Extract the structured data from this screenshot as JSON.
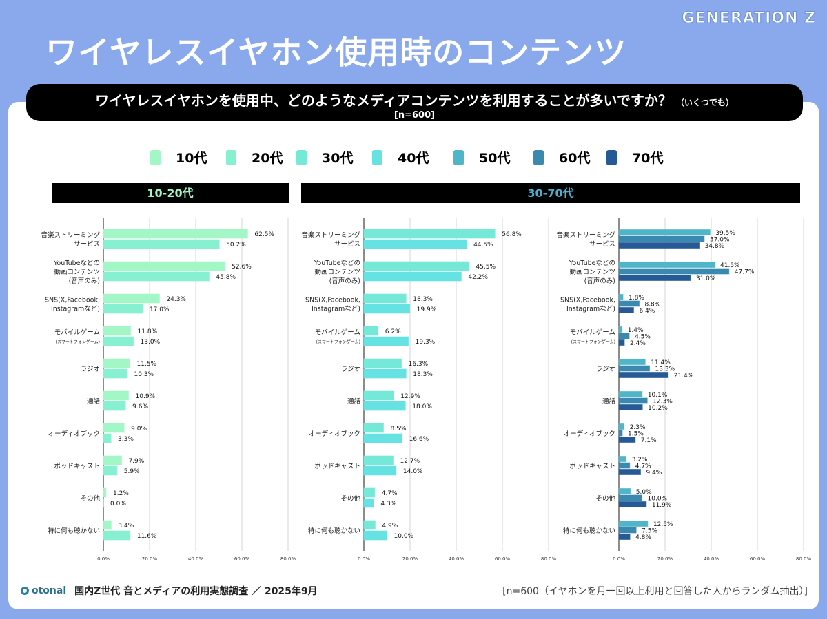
{
  "brand": "GENERATION Z",
  "title": "ワイヤレスイヤホン使用時のコンテンツ",
  "question": "ワイヤレスイヤホンを使用中、どのようなメディアコンテンツを利用することが多いですか？",
  "question_note": "（いくつでも）",
  "sample": "[n=600]",
  "legend": [
    {
      "label": "10代",
      "color": "#a3f7c6"
    },
    {
      "label": "20代",
      "color": "#86f0d0"
    },
    {
      "label": "30代",
      "color": "#76e8d8"
    },
    {
      "label": "40代",
      "color": "#67e2e2"
    },
    {
      "label": "50代",
      "color": "#4fb5c8"
    },
    {
      "label": "60代",
      "color": "#3a89b0"
    },
    {
      "label": "70代",
      "color": "#265a96"
    }
  ],
  "panel_headers": [
    {
      "label": "10-20代",
      "color": "#a0f5c8"
    },
    {
      "label": "30-70代",
      "color": "#4ab0d0"
    }
  ],
  "footer": {
    "logo": "otonal",
    "source": "国内Z世代 音とメディアの利用実態調査 ／ 2025年9月",
    "note": "[n=600（イヤホンを月一回以上利用と回答した人からランダム抽出）]"
  },
  "chart_data": [
    {
      "type": "bar",
      "orientation": "horizontal",
      "xlim": [
        0,
        80
      ],
      "ticks": [
        "0.0%",
        "20.0%",
        "40.0%",
        "60.0%",
        "80.0%"
      ],
      "grid": true,
      "categories": [
        "音楽ストリーミング|サービス",
        "YouTubeなどの|動画コンテンツ|(音声のみ)",
        "SNS(X,Facebook,|Instagramなど)",
        "モバイルゲーム|(スマートフォンゲーム)",
        "ラジオ",
        "通話",
        "オーディオブック",
        "ポッドキャスト",
        "その他",
        "特に何も聴かない"
      ],
      "series": [
        {
          "name": "10代",
          "color": "#a3f7c6",
          "values": [
            62.5,
            52.6,
            24.3,
            11.8,
            11.5,
            10.9,
            9.0,
            7.9,
            1.2,
            3.4
          ]
        },
        {
          "name": "20代",
          "color": "#86f0d0",
          "values": [
            50.2,
            45.8,
            17.0,
            13.0,
            10.3,
            9.6,
            3.3,
            5.9,
            0.0,
            11.6
          ]
        }
      ]
    },
    {
      "type": "bar",
      "orientation": "horizontal",
      "xlim": [
        0,
        80
      ],
      "ticks": [
        "0.0%",
        "20.0%",
        "40.0%",
        "60.0%",
        "80.0%"
      ],
      "grid": true,
      "categories": [
        "音楽ストリーミング|サービス",
        "YouTubeなどの|動画コンテンツ|(音声のみ)",
        "SNS(X,Facebook,|Instagramなど)",
        "モバイルゲーム|(スマートフォンゲーム)",
        "ラジオ",
        "通話",
        "オーディオブック",
        "ポッドキャスト",
        "その他",
        "特に何も聴かない"
      ],
      "series": [
        {
          "name": "30代",
          "color": "#76e8d8",
          "values": [
            56.8,
            45.5,
            18.3,
            6.2,
            16.3,
            12.9,
            8.5,
            12.7,
            4.7,
            4.9
          ]
        },
        {
          "name": "40代",
          "color": "#67e2e2",
          "values": [
            44.5,
            42.2,
            19.9,
            19.3,
            18.3,
            18.0,
            16.6,
            14.0,
            4.3,
            10.0
          ]
        }
      ]
    },
    {
      "type": "bar",
      "orientation": "horizontal",
      "xlim": [
        0,
        80
      ],
      "ticks": [
        "0.0%",
        "20.0%",
        "40.0%",
        "60.0%",
        "80.0%"
      ],
      "grid": true,
      "categories": [
        "音楽ストリーミング|サービス",
        "YouTubeなどの|動画コンテンツ|(音声のみ)",
        "SNS(X,Facebook,|Instagramなど)",
        "モバイルゲーム|(スマートフォンゲーム)",
        "ラジオ",
        "通話",
        "オーディオブック",
        "ポッドキャスト",
        "その他",
        "特に何も聴かない"
      ],
      "series": [
        {
          "name": "50代",
          "color": "#4fb5c8",
          "values": [
            39.5,
            41.5,
            1.8,
            1.4,
            11.4,
            10.1,
            2.3,
            3.2,
            5.0,
            12.5
          ]
        },
        {
          "name": "60代",
          "color": "#3a89b0",
          "values": [
            37.0,
            47.7,
            8.8,
            4.5,
            13.3,
            12.3,
            1.5,
            4.7,
            10.0,
            7.5
          ]
        },
        {
          "name": "70代",
          "color": "#265a96",
          "values": [
            34.8,
            31.0,
            6.4,
            2.4,
            21.4,
            10.2,
            7.1,
            9.4,
            11.9,
            4.8
          ]
        }
      ]
    }
  ]
}
